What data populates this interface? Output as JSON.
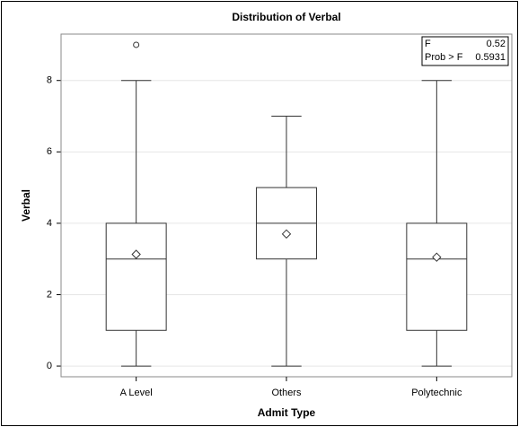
{
  "chart_data": {
    "type": "box",
    "title": "Distribution of Verbal",
    "x_label": "Admit Type",
    "y_label": "Verbal",
    "categories": [
      "A Level",
      "Others",
      "Polytechnic"
    ],
    "boxes": [
      {
        "whisker_low": 0,
        "q1": 1,
        "median": 3,
        "q3": 4,
        "whisker_high": 8,
        "mean": 3.13,
        "outliers": [
          9
        ]
      },
      {
        "whisker_low": 0,
        "q1": 3,
        "median": 4,
        "q3": 5,
        "whisker_high": 7,
        "mean": 3.7,
        "outliers": []
      },
      {
        "whisker_low": 0,
        "q1": 1,
        "median": 3,
        "q3": 4,
        "whisker_high": 8,
        "mean": 3.05,
        "outliers": []
      }
    ],
    "ylim": [
      -0.3,
      9.3
    ],
    "yticks": [
      0,
      2,
      4,
      6,
      8
    ],
    "grid": true,
    "inset": {
      "rows": [
        [
          "F",
          0.52
        ],
        [
          "Prob > F",
          0.5931
        ]
      ]
    }
  }
}
